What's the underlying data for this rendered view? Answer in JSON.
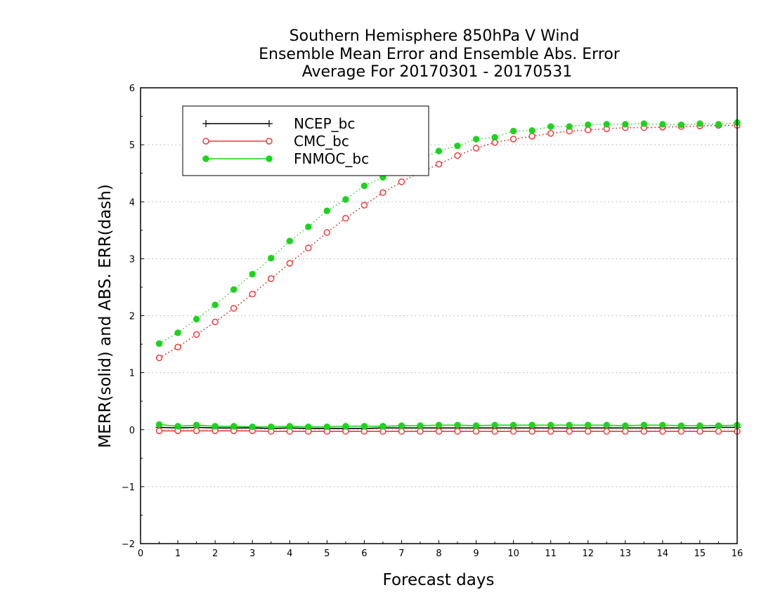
{
  "chart_data": {
    "type": "line",
    "title": [
      "Southern Hemisphere 850hPa V Wind",
      "Ensemble Mean Error and Ensemble Abs. Error",
      "Average For 20170301 - 20170531"
    ],
    "xlabel": "Forecast days",
    "ylabel": "MERR(solid) and ABS. ERR(dash)",
    "xlim": [
      0,
      16
    ],
    "ylim": [
      -2,
      6
    ],
    "xticks": [
      "0",
      "1",
      "2",
      "3",
      "4",
      "5",
      "6",
      "7",
      "8",
      "9",
      "10",
      "11",
      "12",
      "13",
      "14",
      "15",
      "16"
    ],
    "yticks": [
      "−2",
      "−1",
      "0",
      "1",
      "2",
      "3",
      "4",
      "5",
      "6"
    ],
    "grid": "horizontal dotted",
    "legend_position": "top-left",
    "x": [
      0.5,
      1,
      1.5,
      2,
      2.5,
      3,
      3.5,
      4,
      4.5,
      5,
      5.5,
      6,
      6.5,
      7,
      7.5,
      8,
      8.5,
      9,
      9.5,
      10,
      10.5,
      11,
      11.5,
      12,
      12.5,
      13,
      13.5,
      14,
      14.5,
      15,
      15.5,
      16
    ],
    "series": [
      {
        "name": "NCEP_bc",
        "color": "#000000",
        "marker": "plus",
        "merr": [
          0.04,
          0.03,
          0.04,
          0.03,
          0.03,
          0.03,
          0.02,
          0.03,
          0.02,
          0.02,
          0.02,
          0.02,
          0.03,
          0.03,
          0.03,
          0.03,
          0.03,
          0.03,
          0.03,
          0.03,
          0.03,
          0.03,
          0.03,
          0.03,
          0.03,
          0.03,
          0.03,
          0.03,
          0.03,
          0.03,
          0.04,
          0.04
        ],
        "abs_err": [
          1.26,
          1.45,
          1.67,
          1.89,
          2.13,
          2.38,
          2.65,
          2.92,
          3.19,
          3.46,
          3.71,
          3.94,
          4.16,
          4.35,
          4.52,
          4.66,
          4.81,
          4.94,
          5.04,
          5.1,
          5.15,
          5.2,
          5.24,
          5.26,
          5.28,
          5.3,
          5.3,
          5.31,
          5.32,
          5.33,
          5.34,
          5.34
        ]
      },
      {
        "name": "CMC_bc",
        "color": "#ee3b3b",
        "marker": "open-circle",
        "merr": [
          -0.02,
          -0.02,
          -0.02,
          -0.02,
          -0.02,
          -0.02,
          -0.03,
          -0.03,
          -0.03,
          -0.03,
          -0.03,
          -0.03,
          -0.03,
          -0.03,
          -0.03,
          -0.03,
          -0.03,
          -0.03,
          -0.03,
          -0.03,
          -0.03,
          -0.03,
          -0.03,
          -0.03,
          -0.03,
          -0.03,
          -0.03,
          -0.03,
          -0.03,
          -0.03,
          -0.03,
          -0.03
        ],
        "abs_err": [
          1.26,
          1.45,
          1.67,
          1.89,
          2.13,
          2.38,
          2.65,
          2.92,
          3.19,
          3.46,
          3.71,
          3.94,
          4.16,
          4.35,
          4.52,
          4.66,
          4.81,
          4.94,
          5.04,
          5.1,
          5.15,
          5.2,
          5.24,
          5.26,
          5.28,
          5.3,
          5.3,
          5.31,
          5.32,
          5.33,
          5.34,
          5.34
        ]
      },
      {
        "name": "FNMOC_bc",
        "color": "#1ed31e",
        "marker": "filled-circle",
        "merr": [
          0.09,
          0.06,
          0.08,
          0.06,
          0.06,
          0.05,
          0.05,
          0.06,
          0.05,
          0.05,
          0.06,
          0.06,
          0.06,
          0.07,
          0.07,
          0.08,
          0.08,
          0.07,
          0.08,
          0.08,
          0.08,
          0.08,
          0.08,
          0.08,
          0.08,
          0.07,
          0.08,
          0.08,
          0.07,
          0.07,
          0.07,
          0.08
        ],
        "abs_err": [
          1.51,
          1.7,
          1.94,
          2.19,
          2.46,
          2.73,
          3.01,
          3.31,
          3.56,
          3.84,
          4.04,
          4.28,
          4.43,
          4.61,
          4.75,
          4.89,
          4.98,
          5.1,
          5.13,
          5.24,
          5.25,
          5.32,
          5.32,
          5.35,
          5.36,
          5.36,
          5.37,
          5.36,
          5.35,
          5.37,
          5.36,
          5.39
        ]
      }
    ]
  }
}
